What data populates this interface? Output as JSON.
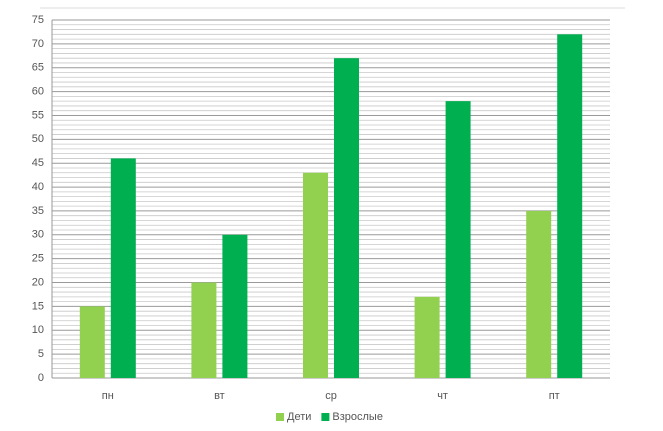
{
  "chart_data": {
    "type": "bar",
    "categories": [
      "пн",
      "вт",
      "ср",
      "чт",
      "пт"
    ],
    "series": [
      {
        "name": "Дети",
        "color": "#92d050",
        "values": [
          15,
          20,
          43,
          17,
          35
        ]
      },
      {
        "name": "Взрослые",
        "color": "#00b050",
        "values": [
          46,
          30,
          67,
          58,
          72
        ]
      }
    ],
    "ylim": [
      0,
      75
    ],
    "yticks": [
      0,
      5,
      10,
      15,
      20,
      25,
      30,
      35,
      40,
      45,
      50,
      55,
      60,
      65,
      70,
      75
    ],
    "grid": true,
    "minor_grid": 5,
    "legend": "bottom"
  }
}
